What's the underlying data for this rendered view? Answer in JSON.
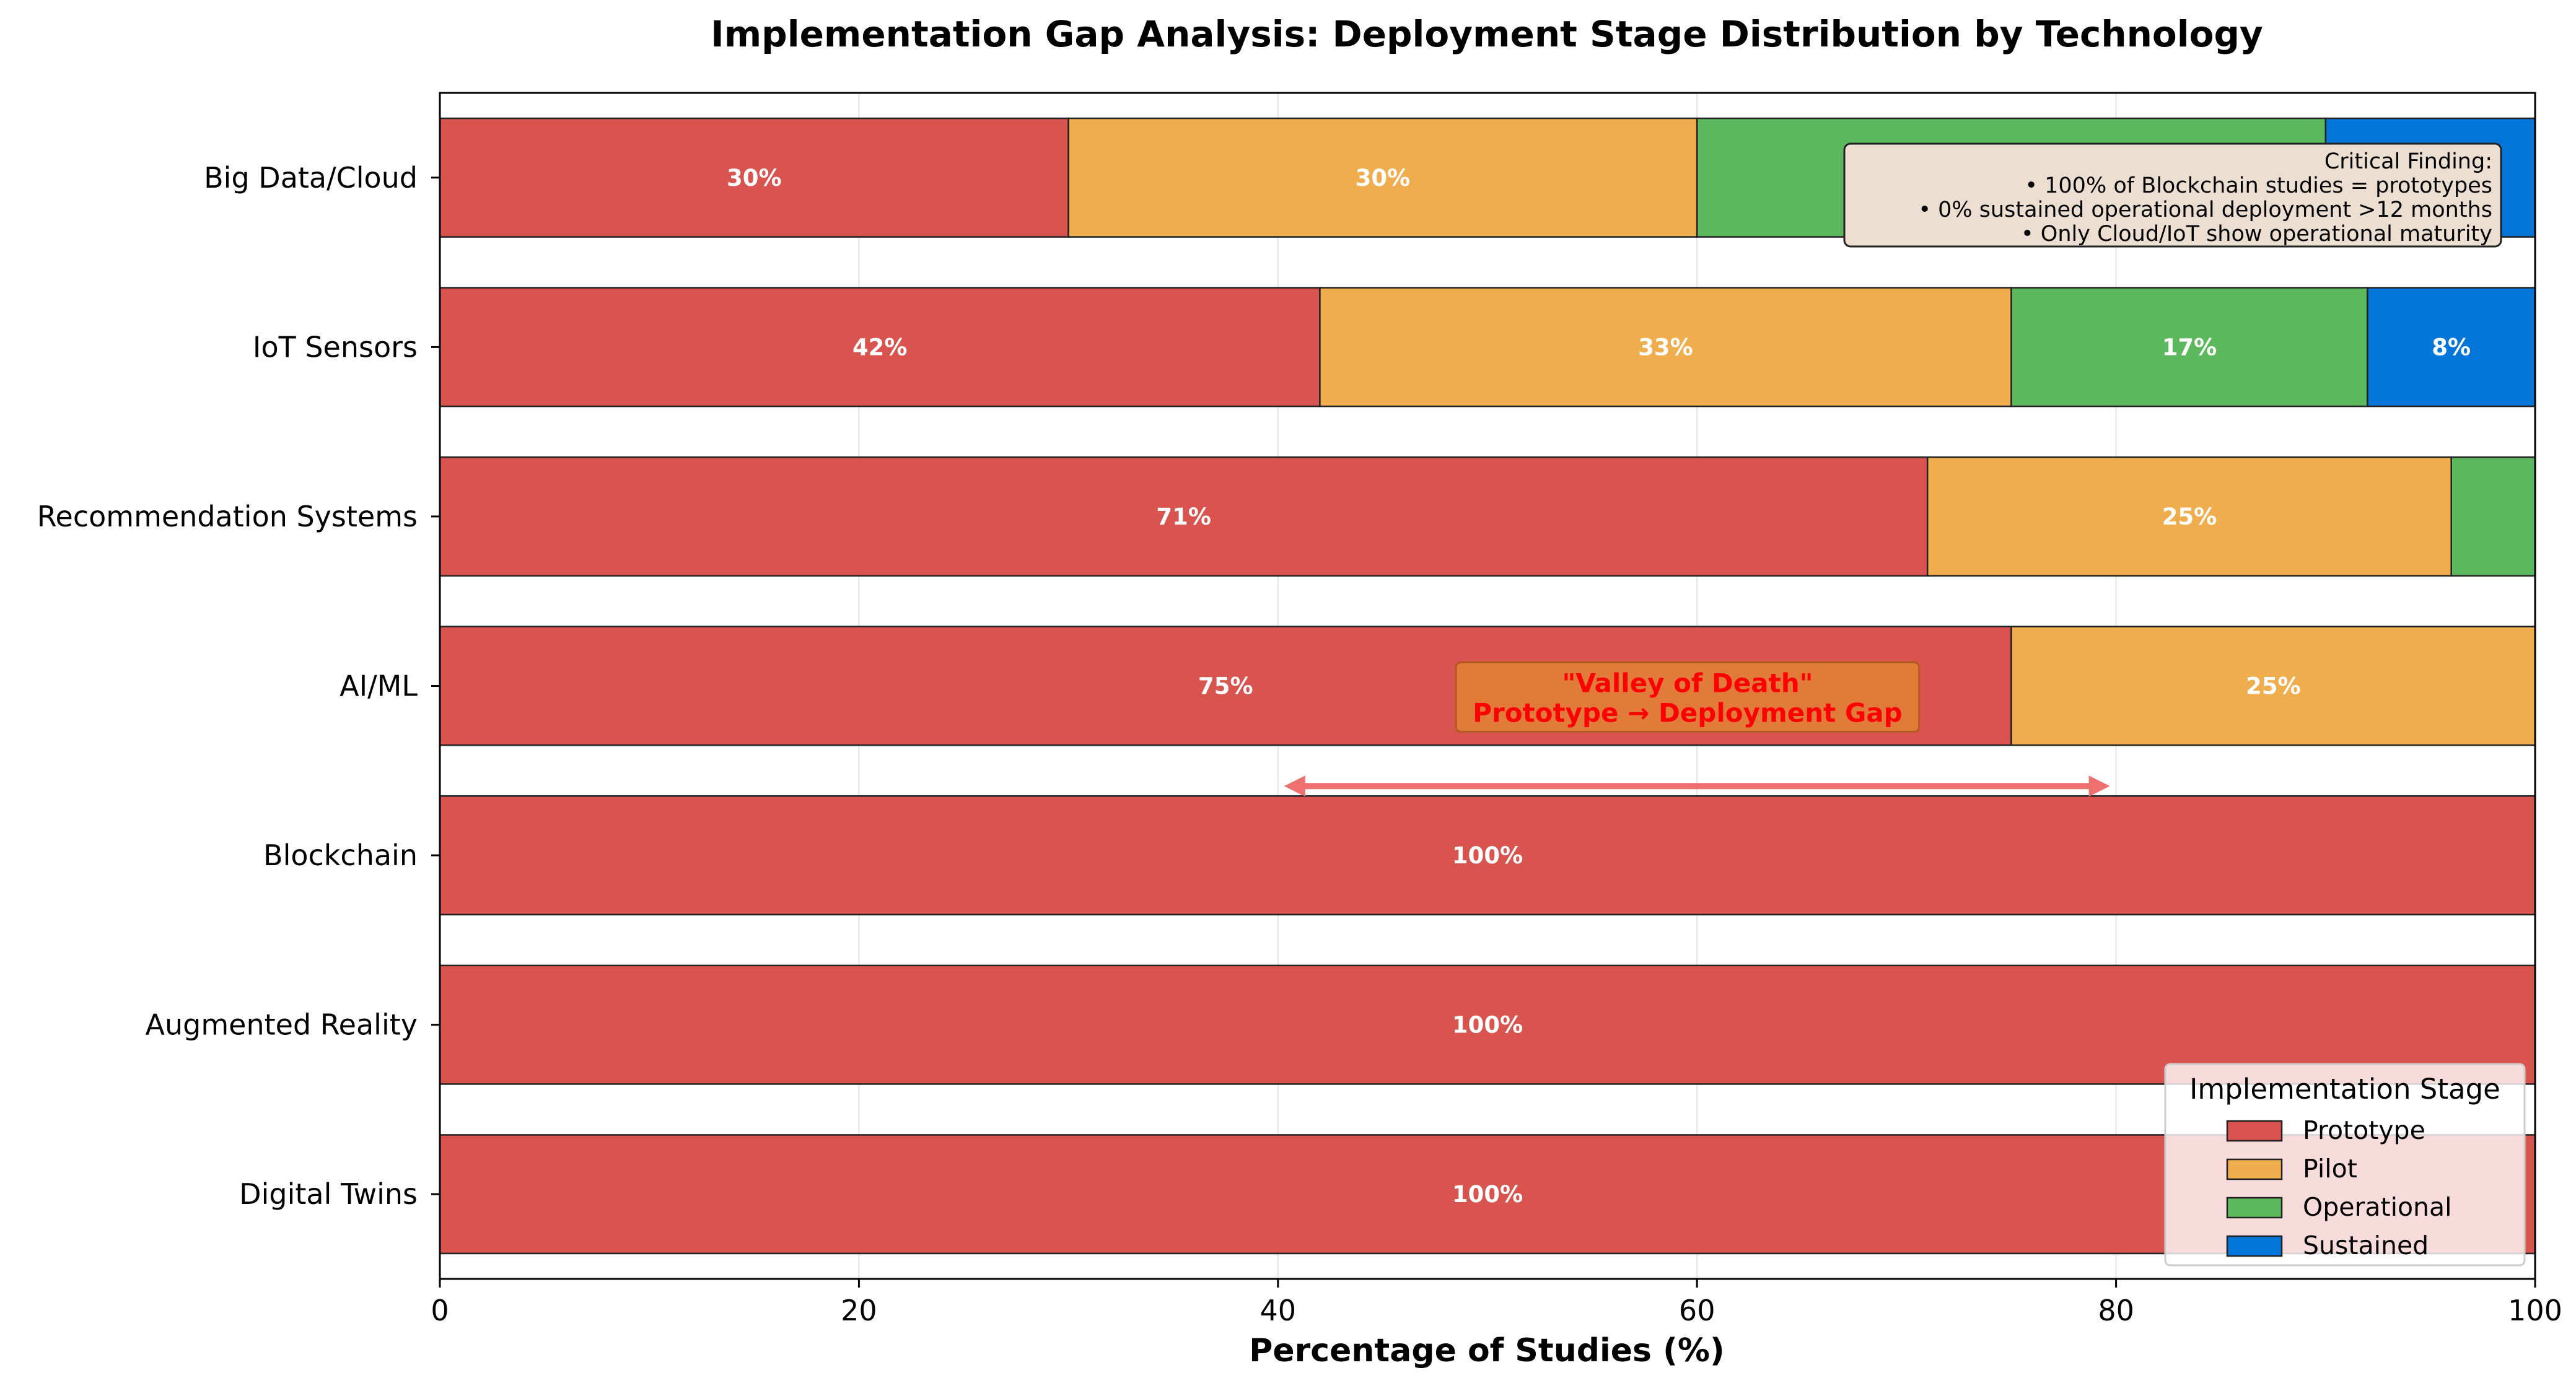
{
  "chart_data": {
    "type": "bar",
    "orientation": "horizontal",
    "stacked": true,
    "title": "Implementation Gap Analysis: Deployment Stage Distribution by Technology",
    "xlabel": "Percentage of Studies (%)",
    "ylabel": "",
    "xlim": [
      0,
      100
    ],
    "xticks": [
      "0",
      "20",
      "40",
      "60",
      "80",
      "100"
    ],
    "categories": [
      "Big Data/Cloud",
      "IoT Sensors",
      "Recommendation Systems",
      "AI/ML",
      "Blockchain",
      "Augmented Reality",
      "Digital Twins"
    ],
    "series": [
      {
        "name": "Prototype",
        "color": "#d9534f",
        "values": [
          30,
          42,
          71,
          75,
          100,
          100,
          100
        ],
        "labels": [
          "30%",
          "42%",
          "71%",
          "75%",
          "100%",
          "100%",
          "100%"
        ]
      },
      {
        "name": "Pilot",
        "color": "#f0ad4e",
        "values": [
          30,
          33,
          25,
          25,
          0,
          0,
          0
        ],
        "labels": [
          "30%",
          "33%",
          "25%",
          "25%",
          "",
          "",
          ""
        ]
      },
      {
        "name": "Operational",
        "color": "#5cb85c",
        "values": [
          30,
          17,
          4,
          0,
          0,
          0,
          0
        ],
        "labels": [
          "",
          "17%",
          "",
          "",
          "",
          "",
          ""
        ]
      },
      {
        "name": "Sustained",
        "color": "#0275d8",
        "values": [
          10,
          8,
          0,
          0,
          0,
          0,
          0
        ],
        "labels": [
          "",
          "8%",
          "",
          "",
          "",
          "",
          ""
        ]
      }
    ],
    "legend": {
      "title": "Implementation Stage",
      "placement": "lower-right"
    },
    "grid": true,
    "annotations": {
      "valley": {
        "line1": "\"Valley of Death\"",
        "line2": "Prototype → Deployment Gap",
        "arrow_from": 40,
        "arrow_to": 80
      },
      "finding": {
        "title": "Critical Finding:",
        "lines": [
          "• 100% of Blockchain studies = prototypes",
          "• 0% sustained operational deployment >12 months",
          "• Only Cloud/IoT show operational maturity"
        ]
      }
    }
  }
}
